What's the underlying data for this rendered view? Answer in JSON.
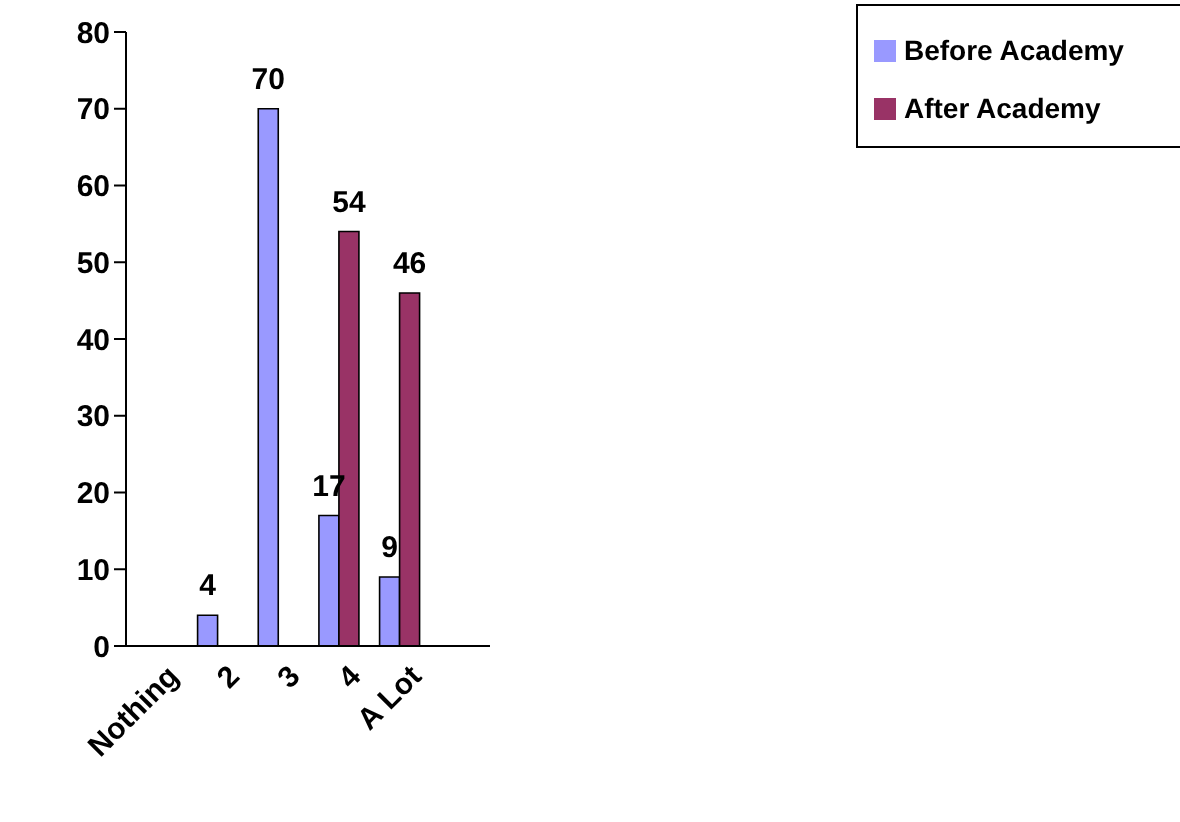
{
  "chart_data": {
    "type": "bar",
    "categories": [
      "Nothing",
      "2",
      "3",
      "4",
      "A Lot",
      null
    ],
    "series": [
      {
        "name": "Before Academy",
        "color": "#9999ff",
        "values": [
          null,
          4,
          70,
          17,
          9,
          null
        ]
      },
      {
        "name": "After Academy",
        "color": "#993366",
        "values": [
          null,
          null,
          null,
          54,
          46,
          null
        ]
      }
    ],
    "ylim": [
      0,
      80
    ],
    "yticks": [
      0,
      10,
      20,
      30,
      40,
      50,
      60,
      70,
      80
    ],
    "grid": false,
    "legend": "top right",
    "data_labels": true
  }
}
